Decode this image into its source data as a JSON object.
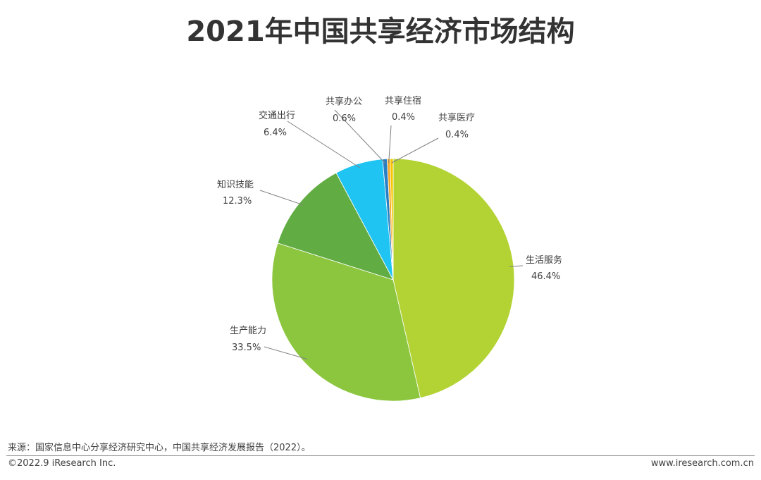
{
  "title": "2021年中国共享经济市场结构",
  "chart_data": {
    "type": "pie",
    "title": "2021年中国共享经济市场结构",
    "slices": [
      {
        "name": "生活服务",
        "value": 46.4,
        "label": "46.4%",
        "color": "#b3d334"
      },
      {
        "name": "生产能力",
        "value": 33.5,
        "label": "33.5%",
        "color": "#8cc63f"
      },
      {
        "name": "知识技能",
        "value": 12.3,
        "label": "12.3%",
        "color": "#62ac44"
      },
      {
        "name": "交通出行",
        "value": 6.4,
        "label": "6.4%",
        "color": "#1fc4f2"
      },
      {
        "name": "共享办公",
        "value": 0.6,
        "label": "0.6%",
        "color": "#2a7fc4"
      },
      {
        "name": "共享住宿",
        "value": 0.4,
        "label": "0.4%",
        "color": "#f5a623"
      },
      {
        "name": "共享医疗",
        "value": 0.4,
        "label": "0.4%",
        "color": "#f7c600"
      }
    ]
  },
  "footer": {
    "source": "来源：国家信息中心分享经济研究中心，中国共享经济发展报告（2022）。",
    "copyright": "©2022.9 iResearch Inc.",
    "website": "www.iresearch.com.cn"
  }
}
